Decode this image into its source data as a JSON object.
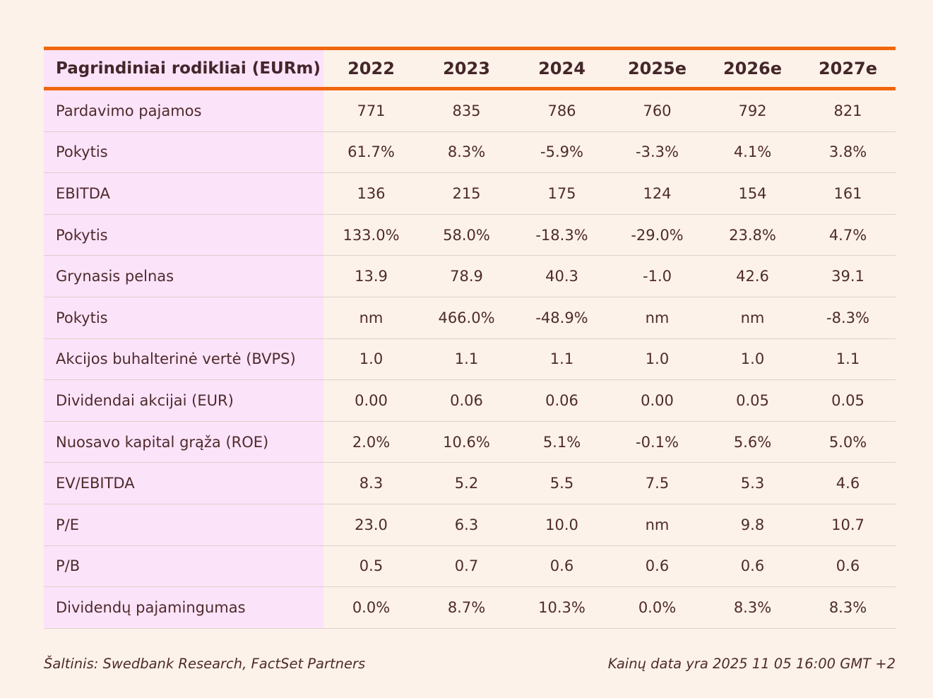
{
  "colors": {
    "page_background": "#FCF2E9",
    "label_column_background": "#FBE3FA",
    "accent_orange": "#F0670F",
    "text_maroon": "#4E2B2B",
    "row_separator": "#E0D0C6"
  },
  "table": {
    "title": "Pagrindiniai rodikliai (EURm)",
    "columns": [
      "2022",
      "2023",
      "2024",
      "2025e",
      "2026e",
      "2027e"
    ],
    "rows": [
      {
        "label": "Pardavimo pajamos",
        "values": [
          "771",
          "835",
          "786",
          "760",
          "792",
          "821"
        ]
      },
      {
        "label": "Pokytis",
        "values": [
          "61.7%",
          "8.3%",
          "-5.9%",
          "-3.3%",
          "4.1%",
          "3.8%"
        ]
      },
      {
        "label": "EBITDA",
        "values": [
          "136",
          "215",
          "175",
          "124",
          "154",
          "161"
        ]
      },
      {
        "label": "Pokytis",
        "values": [
          "133.0%",
          "58.0%",
          "-18.3%",
          "-29.0%",
          "23.8%",
          "4.7%"
        ]
      },
      {
        "label": "Grynasis pelnas",
        "values": [
          "13.9",
          "78.9",
          "40.3",
          "-1.0",
          "42.6",
          "39.1"
        ]
      },
      {
        "label": "Pokytis",
        "values": [
          "nm",
          "466.0%",
          "-48.9%",
          "nm",
          "nm",
          "-8.3%"
        ]
      },
      {
        "label": "Akcijos buhalterinė vertė (BVPS)",
        "values": [
          "1.0",
          "1.1",
          "1.1",
          "1.0",
          "1.0",
          "1.1"
        ]
      },
      {
        "label": "Dividendai akcijai (EUR)",
        "values": [
          "0.00",
          "0.06",
          "0.06",
          "0.00",
          "0.05",
          "0.05"
        ]
      },
      {
        "label": "Nuosavo kapital grąža (ROE)",
        "values": [
          "2.0%",
          "10.6%",
          "5.1%",
          "-0.1%",
          "5.6%",
          "5.0%"
        ]
      },
      {
        "label": "EV/EBITDA",
        "values": [
          "8.3",
          "5.2",
          "5.5",
          "7.5",
          "5.3",
          "4.6"
        ]
      },
      {
        "label": "P/E",
        "values": [
          "23.0",
          "6.3",
          "10.0",
          "nm",
          "9.8",
          "10.7"
        ]
      },
      {
        "label": "P/B",
        "values": [
          "0.5",
          "0.7",
          "0.6",
          "0.6",
          "0.6",
          "0.6"
        ]
      },
      {
        "label": "Dividendų pajamingumas",
        "values": [
          "0.0%",
          "8.7%",
          "10.3%",
          "0.0%",
          "8.3%",
          "8.3%"
        ]
      }
    ]
  },
  "footer": {
    "source": "Šaltinis: Swedbank Research, FactSet Partners",
    "price_note": "Kainų data yra 2025 11 05 16:00 GMT +2"
  },
  "chart_data": {
    "type": "table",
    "title": "Pagrindiniai rodikliai (EURm)",
    "categories": [
      "2022",
      "2023",
      "2024",
      "2025e",
      "2026e",
      "2027e"
    ],
    "series": [
      {
        "name": "Pardavimo pajamos",
        "values": [
          "771",
          "835",
          "786",
          "760",
          "792",
          "821"
        ]
      },
      {
        "name": "Pokytis",
        "values": [
          "61.7%",
          "8.3%",
          "-5.9%",
          "-3.3%",
          "4.1%",
          "3.8%"
        ]
      },
      {
        "name": "EBITDA",
        "values": [
          "136",
          "215",
          "175",
          "124",
          "154",
          "161"
        ]
      },
      {
        "name": "Pokytis",
        "values": [
          "133.0%",
          "58.0%",
          "-18.3%",
          "-29.0%",
          "23.8%",
          "4.7%"
        ]
      },
      {
        "name": "Grynasis pelnas",
        "values": [
          "13.9",
          "78.9",
          "40.3",
          "-1.0",
          "42.6",
          "39.1"
        ]
      },
      {
        "name": "Pokytis",
        "values": [
          "nm",
          "466.0%",
          "-48.9%",
          "nm",
          "nm",
          "-8.3%"
        ]
      },
      {
        "name": "Akcijos buhalterinė vertė (BVPS)",
        "values": [
          "1.0",
          "1.1",
          "1.1",
          "1.0",
          "1.0",
          "1.1"
        ]
      },
      {
        "name": "Dividendai akcijai (EUR)",
        "values": [
          "0.00",
          "0.06",
          "0.06",
          "0.00",
          "0.05",
          "0.05"
        ]
      },
      {
        "name": "Nuosavo kapital grąža (ROE)",
        "values": [
          "2.0%",
          "10.6%",
          "5.1%",
          "-0.1%",
          "5.6%",
          "5.0%"
        ]
      },
      {
        "name": "EV/EBITDA",
        "values": [
          "8.3",
          "5.2",
          "5.5",
          "7.5",
          "5.3",
          "4.6"
        ]
      },
      {
        "name": "P/E",
        "values": [
          "23.0",
          "6.3",
          "10.0",
          "nm",
          "9.8",
          "10.7"
        ]
      },
      {
        "name": "P/B",
        "values": [
          "0.5",
          "0.7",
          "0.6",
          "0.6",
          "0.6",
          "0.6"
        ]
      },
      {
        "name": "Dividendų pajamingumas",
        "values": [
          "0.0%",
          "8.7%",
          "10.3%",
          "0.0%",
          "8.3%",
          "8.3%"
        ]
      }
    ]
  }
}
